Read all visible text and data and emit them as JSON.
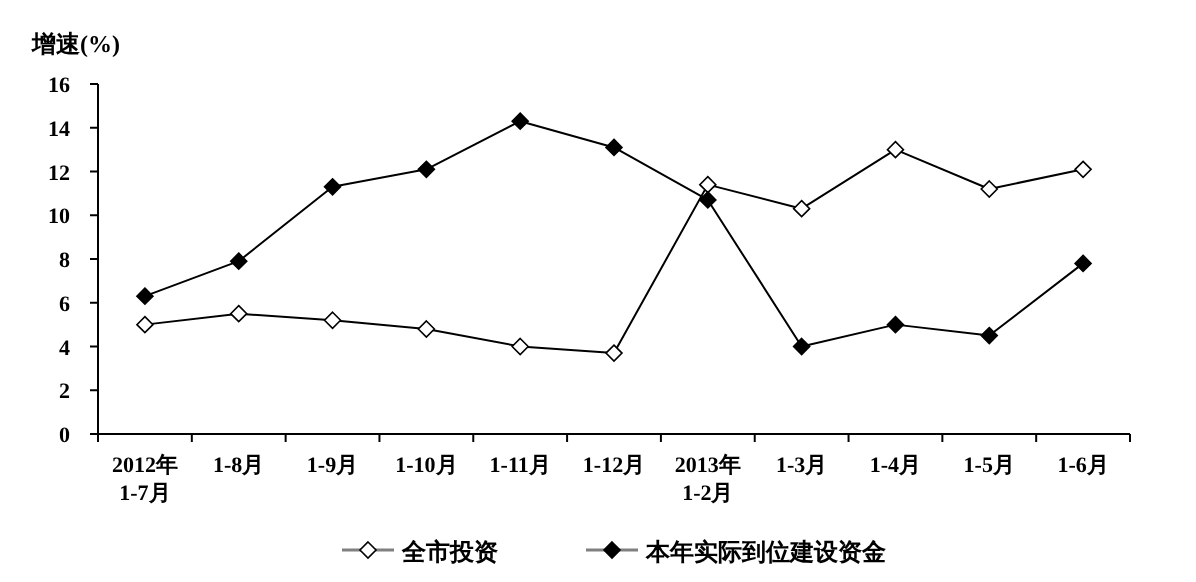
{
  "chart_data": {
    "type": "line",
    "ylabel": "增速(%)",
    "categories": [
      "2012年\n1-7月",
      "1-8月",
      "1-9月",
      "1-10月",
      "1-11月",
      "1-12月",
      "2013年\n1-2月",
      "1-3月",
      "1-4月",
      "1-5月",
      "1-6月"
    ],
    "series": [
      {
        "name": "全市投资",
        "color": "#ffffff",
        "values": [
          5.0,
          5.5,
          5.2,
          4.8,
          4.0,
          3.7,
          11.4,
          10.3,
          13.0,
          11.2,
          12.1
        ]
      },
      {
        "name": "本年实际到位建设资金",
        "color": "#000000",
        "values": [
          6.3,
          7.9,
          11.3,
          12.1,
          14.3,
          13.1,
          10.7,
          4.0,
          5.0,
          4.5,
          7.8
        ]
      }
    ],
    "ylim": [
      0,
      16
    ],
    "yticks": [
      0,
      2,
      4,
      6,
      8,
      10,
      12,
      14,
      16
    ],
    "marker": "diamond",
    "line_style": "solid",
    "grid": false,
    "legend": "bottom"
  }
}
